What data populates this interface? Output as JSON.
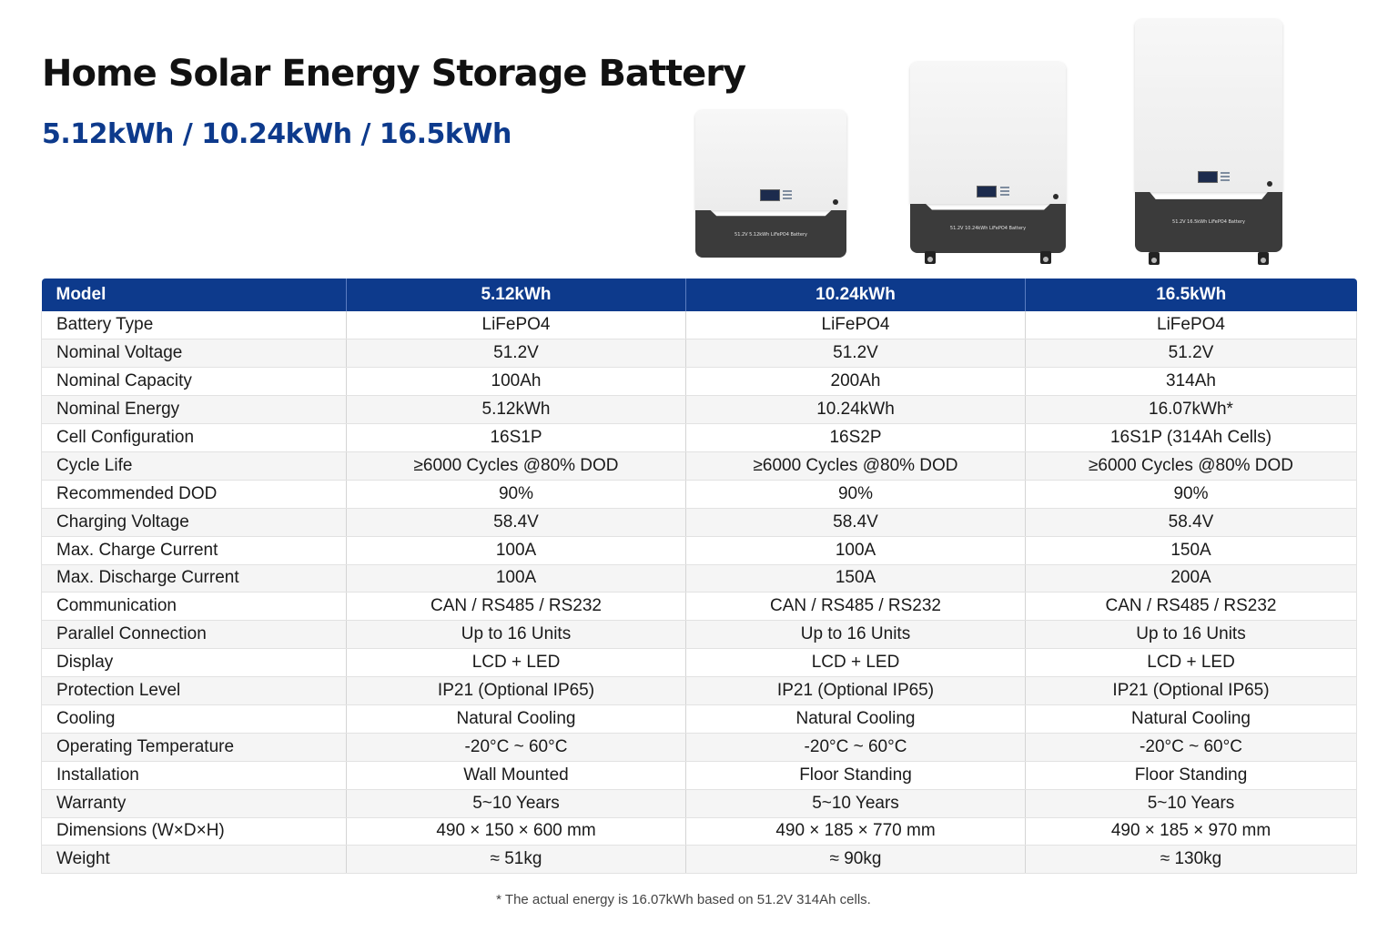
{
  "header": {
    "title": "Home Solar Energy Storage Battery",
    "subtitle": "5.12kWh / 10.24kWh / 16.5kWh"
  },
  "products": [
    {
      "name": "5.12kWh",
      "label": "51.2V 5.12kWh LiFePO4 Battery",
      "icon": "wall-mounted-battery"
    },
    {
      "name": "10.24kWh",
      "label": "51.2V 10.24kWh LiFePO4 Battery",
      "icon": "floor-standing-battery"
    },
    {
      "name": "16.5kWh",
      "label": "51.2V 16.5kWh LiFePO4 Battery",
      "icon": "floor-standing-battery"
    }
  ],
  "table": {
    "headers": [
      "Model",
      "5.12kWh",
      "10.24kWh",
      "16.5kWh"
    ],
    "rows": [
      [
        "Battery Type",
        "LiFePO4",
        "LiFePO4",
        "LiFePO4"
      ],
      [
        "Nominal Voltage",
        "51.2V",
        "51.2V",
        "51.2V"
      ],
      [
        "Nominal Capacity",
        "100Ah",
        "200Ah",
        "314Ah"
      ],
      [
        "Nominal Energy",
        "5.12kWh",
        "10.24kWh",
        "16.07kWh*"
      ],
      [
        "Cell Configuration",
        "16S1P",
        "16S2P",
        "16S1P (314Ah Cells)"
      ],
      [
        "Cycle Life",
        "≥6000 Cycles @80% DOD",
        "≥6000 Cycles @80% DOD",
        "≥6000 Cycles @80% DOD"
      ],
      [
        "Recommended DOD",
        "90%",
        "90%",
        "90%"
      ],
      [
        "Charging Voltage",
        "58.4V",
        "58.4V",
        "58.4V"
      ],
      [
        "Max. Charge Current",
        "100A",
        "100A",
        "150A"
      ],
      [
        "Max. Discharge Current",
        "100A",
        "150A",
        "200A"
      ],
      [
        "Communication",
        "CAN / RS485 / RS232",
        "CAN / RS485 / RS232",
        "CAN / RS485 / RS232"
      ],
      [
        "Parallel Connection",
        "Up to 16 Units",
        "Up to 16 Units",
        "Up to 16 Units"
      ],
      [
        "Display",
        "LCD + LED",
        "LCD + LED",
        "LCD + LED"
      ],
      [
        "Protection Level",
        "IP21 (Optional IP65)",
        "IP21 (Optional IP65)",
        "IP21 (Optional IP65)"
      ],
      [
        "Cooling",
        "Natural Cooling",
        "Natural Cooling",
        "Natural Cooling"
      ],
      [
        "Operating Temperature",
        "-20°C ~ 60°C",
        "-20°C ~ 60°C",
        "-20°C ~ 60°C"
      ],
      [
        "Installation",
        "Wall Mounted",
        "Floor Standing",
        "Floor Standing"
      ],
      [
        "Warranty",
        "5~10 Years",
        "5~10 Years",
        "5~10 Years"
      ],
      [
        "Dimensions (W×D×H)",
        "490 × 150 × 600 mm",
        "490 × 185 × 770 mm",
        "490 × 185 × 970 mm"
      ],
      [
        "Weight",
        "≈ 51kg",
        "≈ 90kg",
        "≈ 130kg"
      ]
    ]
  },
  "footnote": "* The actual energy is 16.07kWh based on 51.2V 314Ah cells.",
  "colors": {
    "brand_blue": "#0d3a8c",
    "battery_dark": "#3b3b3b",
    "battery_light": "#f2f2f2"
  }
}
